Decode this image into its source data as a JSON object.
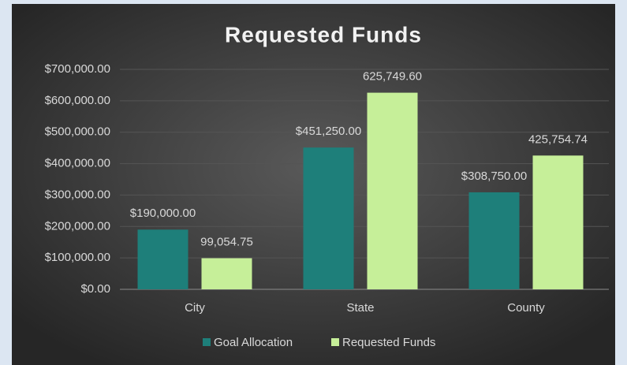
{
  "chart_data": {
    "type": "bar",
    "title": "Requested Funds",
    "categories": [
      "City",
      "State",
      "County"
    ],
    "series": [
      {
        "name": "Goal Allocation",
        "color": "#1e7f7a",
        "values": [
          190000,
          451250,
          308750
        ],
        "value_labels": [
          "$190,000.00",
          "$451,250.00",
          "$308,750.00"
        ]
      },
      {
        "name": "Requested Funds",
        "color": "#c6ef99",
        "values": [
          99054.75,
          625749.6,
          425754.74
        ],
        "value_labels": [
          "99,054.75",
          "625,749.60",
          "425,754.74"
        ]
      }
    ],
    "ylim": [
      0,
      700000
    ],
    "yticks": [
      {
        "value": 0,
        "label": "$0.00"
      },
      {
        "value": 100000,
        "label": "$100,000.00"
      },
      {
        "value": 200000,
        "label": "$200,000.00"
      },
      {
        "value": 300000,
        "label": "$300,000.00"
      },
      {
        "value": 400000,
        "label": "$400,000.00"
      },
      {
        "value": 500000,
        "label": "$500,000.00"
      },
      {
        "value": 600000,
        "label": "$600,000.00"
      },
      {
        "value": 700000,
        "label": "$700,000.00"
      }
    ],
    "grid": true,
    "legend": "bottom"
  }
}
